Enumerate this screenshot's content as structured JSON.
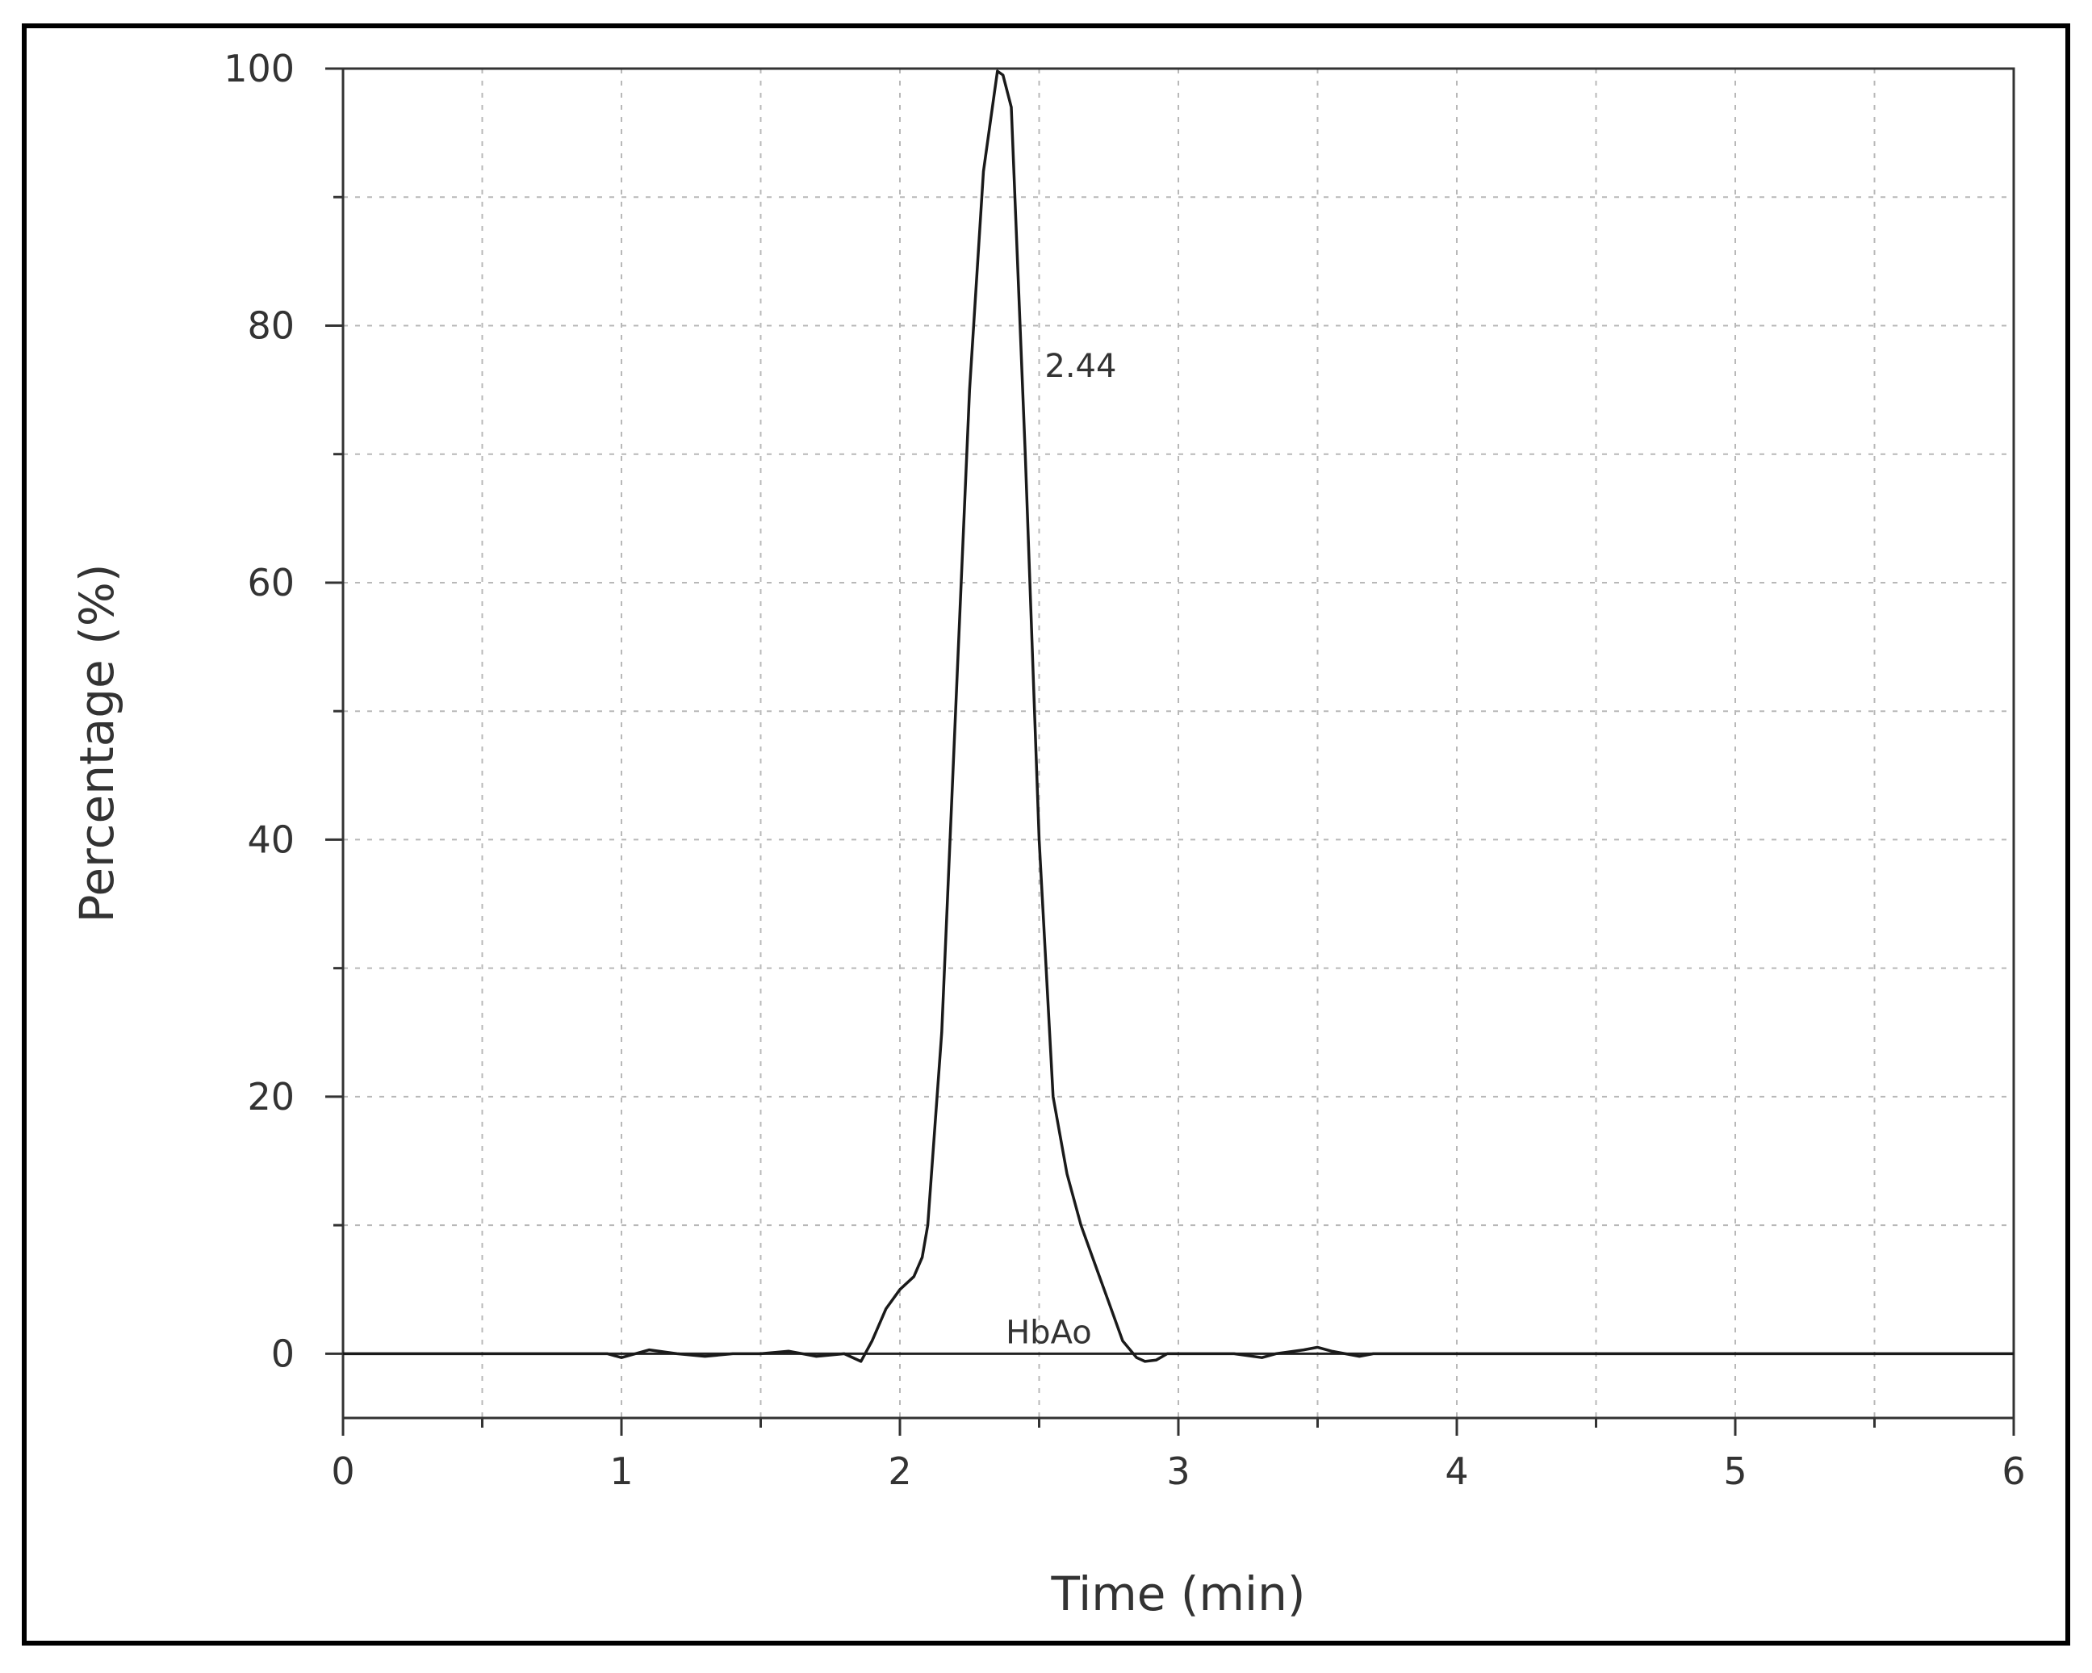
{
  "chart_data": {
    "type": "line",
    "title": "",
    "xlabel": "Time (min)",
    "ylabel": "Percentage (%)",
    "xlim": [
      0,
      6
    ],
    "ylim": [
      -5,
      100
    ],
    "x_ticks": [
      0,
      1,
      2,
      3,
      4,
      5,
      6
    ],
    "x_tick_labels": [
      "0",
      "1",
      "2",
      "3",
      "4",
      "5",
      "6"
    ],
    "y_ticks": [
      0,
      20,
      40,
      60,
      80,
      100
    ],
    "y_tick_labels": [
      "0",
      "20",
      "40",
      "60",
      "80",
      "100"
    ],
    "grid": true,
    "legend": "none",
    "baseline_y": 0,
    "series": [
      {
        "x": [
          0,
          0.95,
          1.0,
          1.1,
          1.2,
          1.3,
          1.4,
          1.5,
          1.6,
          1.7,
          1.8,
          1.86,
          1.9,
          1.95,
          2.0,
          2.05,
          2.08,
          2.1,
          2.15,
          2.2,
          2.25,
          2.3,
          2.35,
          2.37,
          2.4,
          2.45,
          2.5,
          2.55,
          2.6,
          2.65,
          2.7,
          2.75,
          2.8,
          2.85,
          2.88,
          2.92,
          2.96,
          3.0,
          3.1,
          3.2,
          3.3,
          3.35,
          3.45,
          3.5,
          3.55,
          3.65,
          3.7,
          4.0,
          5.0,
          6.0
        ],
        "y": [
          0,
          0,
          -0.3,
          0.3,
          0,
          -0.2,
          0,
          0,
          0.2,
          -0.2,
          0,
          -0.6,
          1.0,
          3.5,
          5.0,
          6.0,
          7.5,
          10.0,
          25.0,
          50.0,
          75.0,
          92.0,
          99.8,
          99.5,
          97.0,
          70.0,
          40.0,
          20.0,
          14.0,
          10.0,
          7.0,
          4.0,
          1.0,
          -0.3,
          -0.6,
          -0.5,
          0,
          0,
          0,
          0,
          -0.3,
          0,
          0.3,
          0.5,
          0.2,
          -0.2,
          0,
          0,
          0,
          0
        ]
      }
    ],
    "annotations": [
      {
        "text": "2.44",
        "x": 2.52,
        "y": 76
      },
      {
        "text": "HbAo",
        "x": 2.38,
        "y": 0.8
      }
    ]
  }
}
